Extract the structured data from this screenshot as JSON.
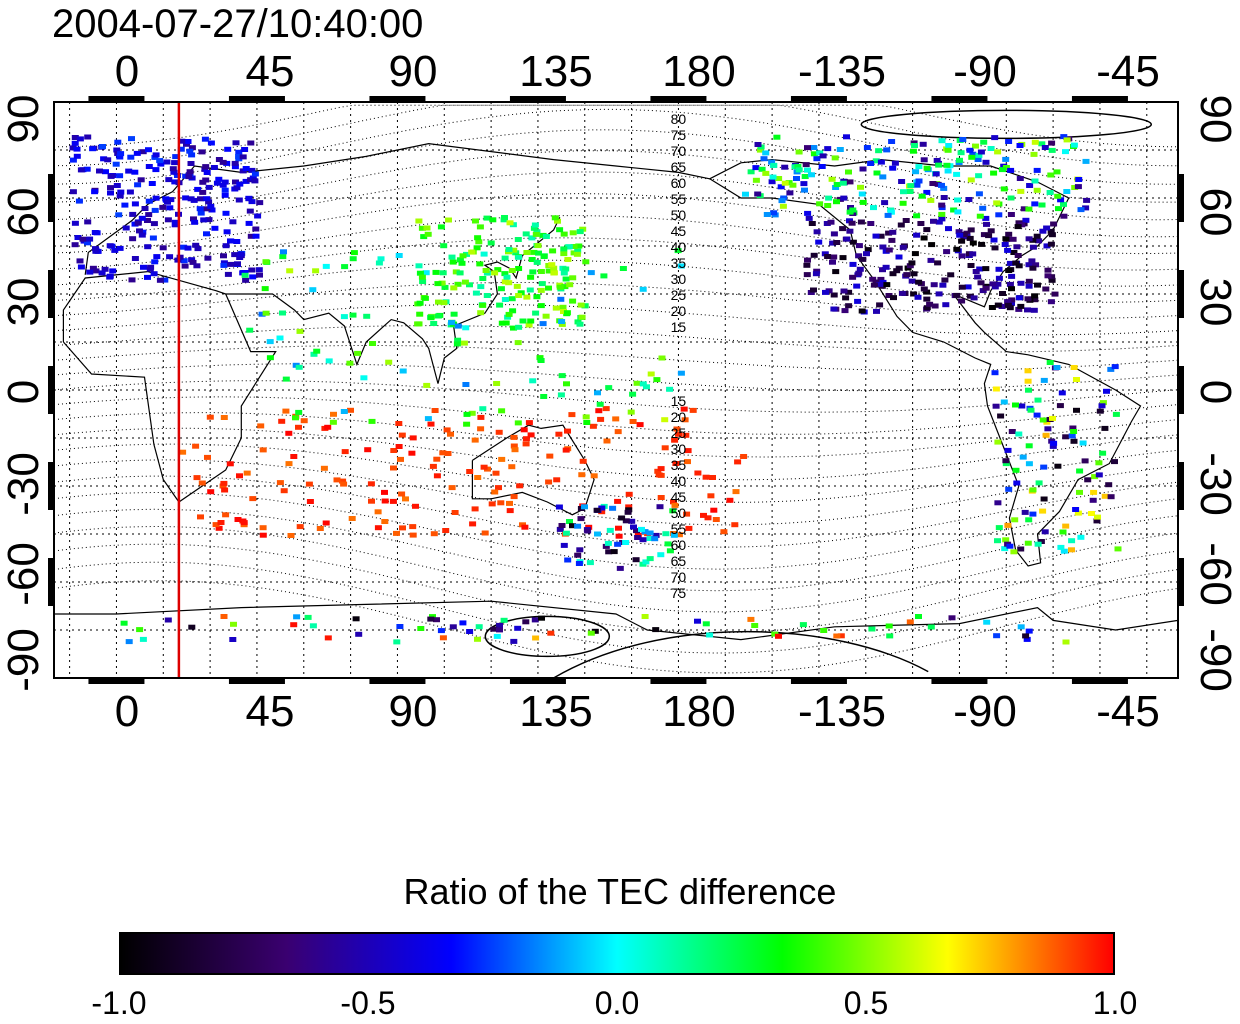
{
  "title": "2004-07-27/10:40:00",
  "lon_ticks": [
    "0",
    "45",
    "90",
    "135",
    "180",
    "-135",
    "-90",
    "-45"
  ],
  "lat_ticks": [
    "90",
    "60",
    "30",
    "0",
    "-30",
    "-60",
    "-90"
  ],
  "map": {
    "projection": "equirectangular",
    "lon_range": [
      -20,
      340
    ],
    "lat_range": [
      -90,
      90
    ],
    "grid": true,
    "coastlines": true,
    "marker_line_lon": 20,
    "marker_line_color": "#dd0000",
    "contour_labels_upper": [
      "80",
      "75",
      "70",
      "65",
      "60",
      "55",
      "50",
      "45",
      "40",
      "35",
      "30",
      "25",
      "20",
      "15"
    ],
    "contour_labels_lower": [
      "15",
      "20",
      "25",
      "30",
      "35",
      "40",
      "45",
      "50",
      "55",
      "60",
      "65",
      "70",
      "75"
    ]
  },
  "colorbar": {
    "label": "Ratio of the TEC difference",
    "ticks": [
      "-1.0",
      "-0.5",
      "0.0",
      "0.5",
      "1.0"
    ],
    "range": [
      -1.0,
      1.0
    ],
    "colormap": [
      "#000000",
      "#3a0070",
      "#0000ff",
      "#00ffff",
      "#00ff00",
      "#ffff00",
      "#ff0000"
    ]
  }
}
